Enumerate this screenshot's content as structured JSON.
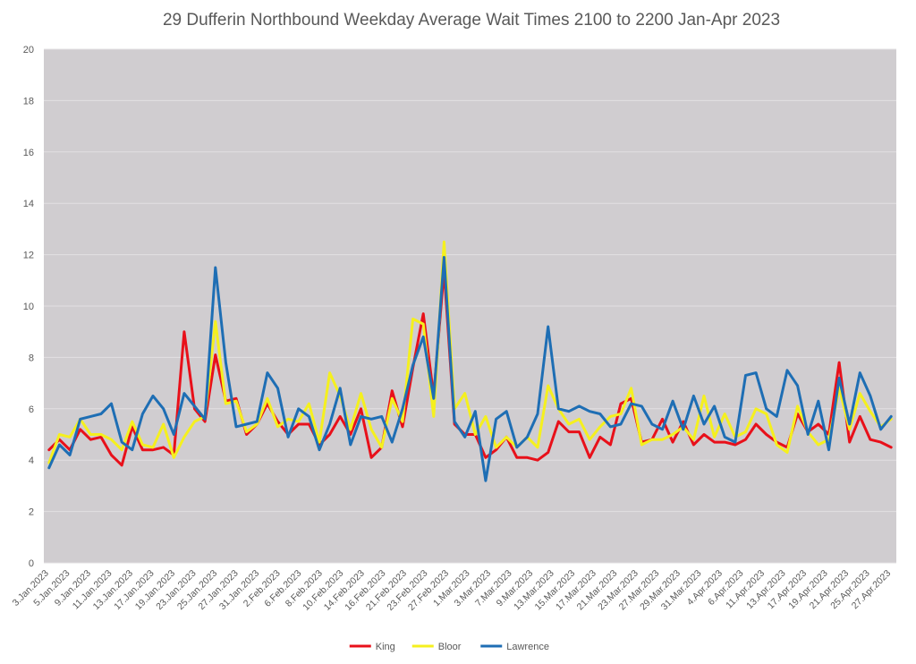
{
  "chart_data": {
    "type": "line",
    "title": "29 Dufferin Northbound Weekday Average Wait Times 2100 to 2200 Jan-Apr 2023",
    "xlabel": "",
    "ylabel": "",
    "ylim": [
      0,
      20
    ],
    "yticks": [
      0,
      2,
      4,
      6,
      8,
      10,
      12,
      14,
      16,
      18,
      20
    ],
    "grid": true,
    "legend_position": "bottom",
    "x_tick_labels": [
      "3.Jan.2023",
      "5.Jan.2023",
      "9.Jan.2023",
      "11.Jan.2023",
      "13.Jan.2023",
      "17.Jan.2023",
      "19.Jan.2023",
      "23.Jan.2023",
      "25.Jan.2023",
      "27.Jan.2023",
      "31.Jan.2023",
      "2.Feb.2023",
      "6.Feb.2023",
      "8.Feb.2023",
      "10.Feb.2023",
      "14.Feb.2023",
      "16.Feb.2023",
      "21.Feb.2023",
      "23.Feb.2023",
      "27.Feb.2023",
      "1.Mar.2023",
      "3.Mar.2023",
      "7.Mar.2023",
      "9.Mar.2023",
      "13.Mar.2023",
      "15.Mar.2023",
      "17.Mar.2023",
      "21.Mar.2023",
      "23.Mar.2023",
      "27.Mar.2023",
      "29.Mar.2023",
      "31.Mar.2023",
      "4.Apr.2023",
      "6.Apr.2023",
      "11.Apr.2023",
      "13.Apr.2023",
      "17.Apr.2023",
      "19.Apr.2023",
      "21.Apr.2023",
      "25.Apr.2023",
      "27.Apr.2023"
    ],
    "series": [
      {
        "name": "King",
        "color": "#e8101a",
        "values": [
          4.4,
          4.8,
          4.4,
          5.2,
          4.8,
          4.9,
          4.2,
          3.8,
          5.3,
          4.4,
          4.4,
          4.5,
          4.2,
          9.0,
          6.0,
          5.5,
          8.1,
          6.3,
          6.4,
          5.0,
          5.4,
          6.2,
          5.5,
          5.0,
          5.4,
          5.4,
          4.6,
          5.0,
          5.7,
          5.0,
          6.0,
          4.1,
          4.5,
          6.7,
          5.3,
          7.6,
          9.7,
          6.5,
          11.4,
          5.4,
          5.0,
          5.0,
          4.1,
          4.4,
          4.9,
          4.1,
          4.1,
          4.0,
          4.3,
          5.5,
          5.1,
          5.1,
          4.1,
          4.9,
          4.6,
          6.2,
          6.4,
          4.7,
          4.8,
          5.6,
          4.7,
          5.5,
          4.6,
          5.0,
          4.7,
          4.7,
          4.6,
          4.8,
          5.4,
          5.0,
          4.7,
          4.5,
          5.8,
          5.1,
          5.4,
          5.0,
          7.8,
          4.7,
          5.7,
          4.8,
          4.7,
          4.5
        ]
      },
      {
        "name": "Bloor",
        "color": "#f5f01e",
        "values": [
          3.9,
          5.0,
          4.9,
          5.6,
          5.0,
          5.0,
          4.8,
          4.4,
          5.5,
          4.6,
          4.5,
          5.4,
          4.1,
          4.9,
          5.5,
          5.7,
          9.4,
          6.2,
          6.3,
          5.1,
          5.4,
          6.4,
          5.3,
          5.6,
          5.5,
          6.2,
          4.7,
          7.4,
          6.5,
          5.2,
          6.6,
          5.2,
          4.5,
          6.4,
          5.5,
          9.5,
          9.3,
          5.7,
          12.5,
          6.0,
          6.6,
          5.0,
          5.7,
          4.5,
          4.9,
          4.5,
          4.9,
          4.5,
          6.9,
          6.0,
          5.4,
          5.6,
          4.8,
          5.3,
          5.7,
          5.8,
          6.8,
          4.6,
          4.8,
          4.8,
          5.0,
          5.3,
          4.8,
          6.5,
          4.9,
          5.8,
          4.9,
          5.1,
          6.0,
          5.8,
          4.6,
          4.3,
          6.1,
          5.1,
          4.6,
          4.8,
          6.8,
          5.2,
          6.6,
          5.9,
          5.3,
          5.6
        ]
      },
      {
        "name": "Lawrence",
        "color": "#1e6eb4",
        "values": [
          3.7,
          4.6,
          4.2,
          5.6,
          5.7,
          5.8,
          6.2,
          4.7,
          4.4,
          5.8,
          6.5,
          6.0,
          5.0,
          6.6,
          6.1,
          5.6,
          11.5,
          7.8,
          5.3,
          5.4,
          5.5,
          7.4,
          6.8,
          4.9,
          6.0,
          5.7,
          4.4,
          5.4,
          6.8,
          4.6,
          5.7,
          5.6,
          5.7,
          4.7,
          6.0,
          7.7,
          8.8,
          6.4,
          11.9,
          5.5,
          4.9,
          5.9,
          3.2,
          5.6,
          5.9,
          4.5,
          4.9,
          5.8,
          9.2,
          6.0,
          5.9,
          6.1,
          5.9,
          5.8,
          5.3,
          5.4,
          6.2,
          6.1,
          5.4,
          5.2,
          6.3,
          5.2,
          6.5,
          5.4,
          6.1,
          4.9,
          4.7,
          7.3,
          7.4,
          6.0,
          5.7,
          7.5,
          6.9,
          5.0,
          6.3,
          4.4,
          7.2,
          5.4,
          7.4,
          6.5,
          5.2,
          5.7
        ]
      }
    ]
  }
}
